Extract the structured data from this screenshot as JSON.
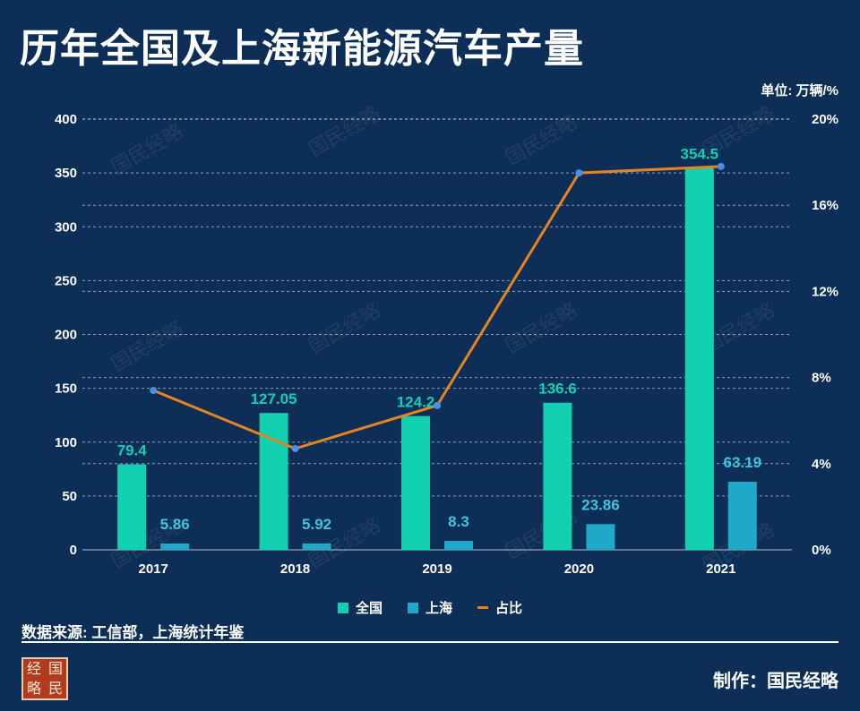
{
  "title": "历年全国及上海新能源汽车产量",
  "unit_label": "单位: 万辆/%",
  "source": "数据来源: 工信部，上海统计年鉴",
  "credit": "制作：国民经略",
  "logo_chars": [
    "经",
    "国",
    "略",
    "民"
  ],
  "watermark": "国民经略",
  "colors": {
    "national": "#11d1b0",
    "shanghai": "#1fa8c9",
    "share": "#e8841f",
    "share_point": "#4b8fe8",
    "background": "#0c2e57"
  },
  "chart_data": {
    "type": "bar",
    "categories": [
      "2017",
      "2018",
      "2019",
      "2020",
      "2021"
    ],
    "series": [
      {
        "name": "全国",
        "type": "bar",
        "axis": "left",
        "values": [
          79.4,
          127.05,
          124.2,
          136.6,
          354.5
        ],
        "labels": [
          "79.4",
          "127.05",
          "124.2",
          "136.6",
          "354.5"
        ]
      },
      {
        "name": "上海",
        "type": "bar",
        "axis": "left",
        "values": [
          5.86,
          5.92,
          8.3,
          23.86,
          63.19
        ],
        "labels": [
          "5.86",
          "5.92",
          "8.3",
          "23.86",
          "63.19"
        ]
      },
      {
        "name": "占比",
        "type": "line",
        "axis": "right",
        "values": [
          7.4,
          4.7,
          6.7,
          17.5,
          17.8
        ]
      }
    ],
    "y_left": {
      "min": 0,
      "max": 400,
      "ticks": [
        "0",
        "50",
        "100",
        "150",
        "200",
        "250",
        "300",
        "350",
        "400"
      ]
    },
    "y_right": {
      "min": 0,
      "max": 20,
      "ticks": [
        "0%",
        "4%",
        "8%",
        "12%",
        "16%",
        "20%"
      ]
    },
    "grid": true,
    "legend_position": "bottom"
  }
}
